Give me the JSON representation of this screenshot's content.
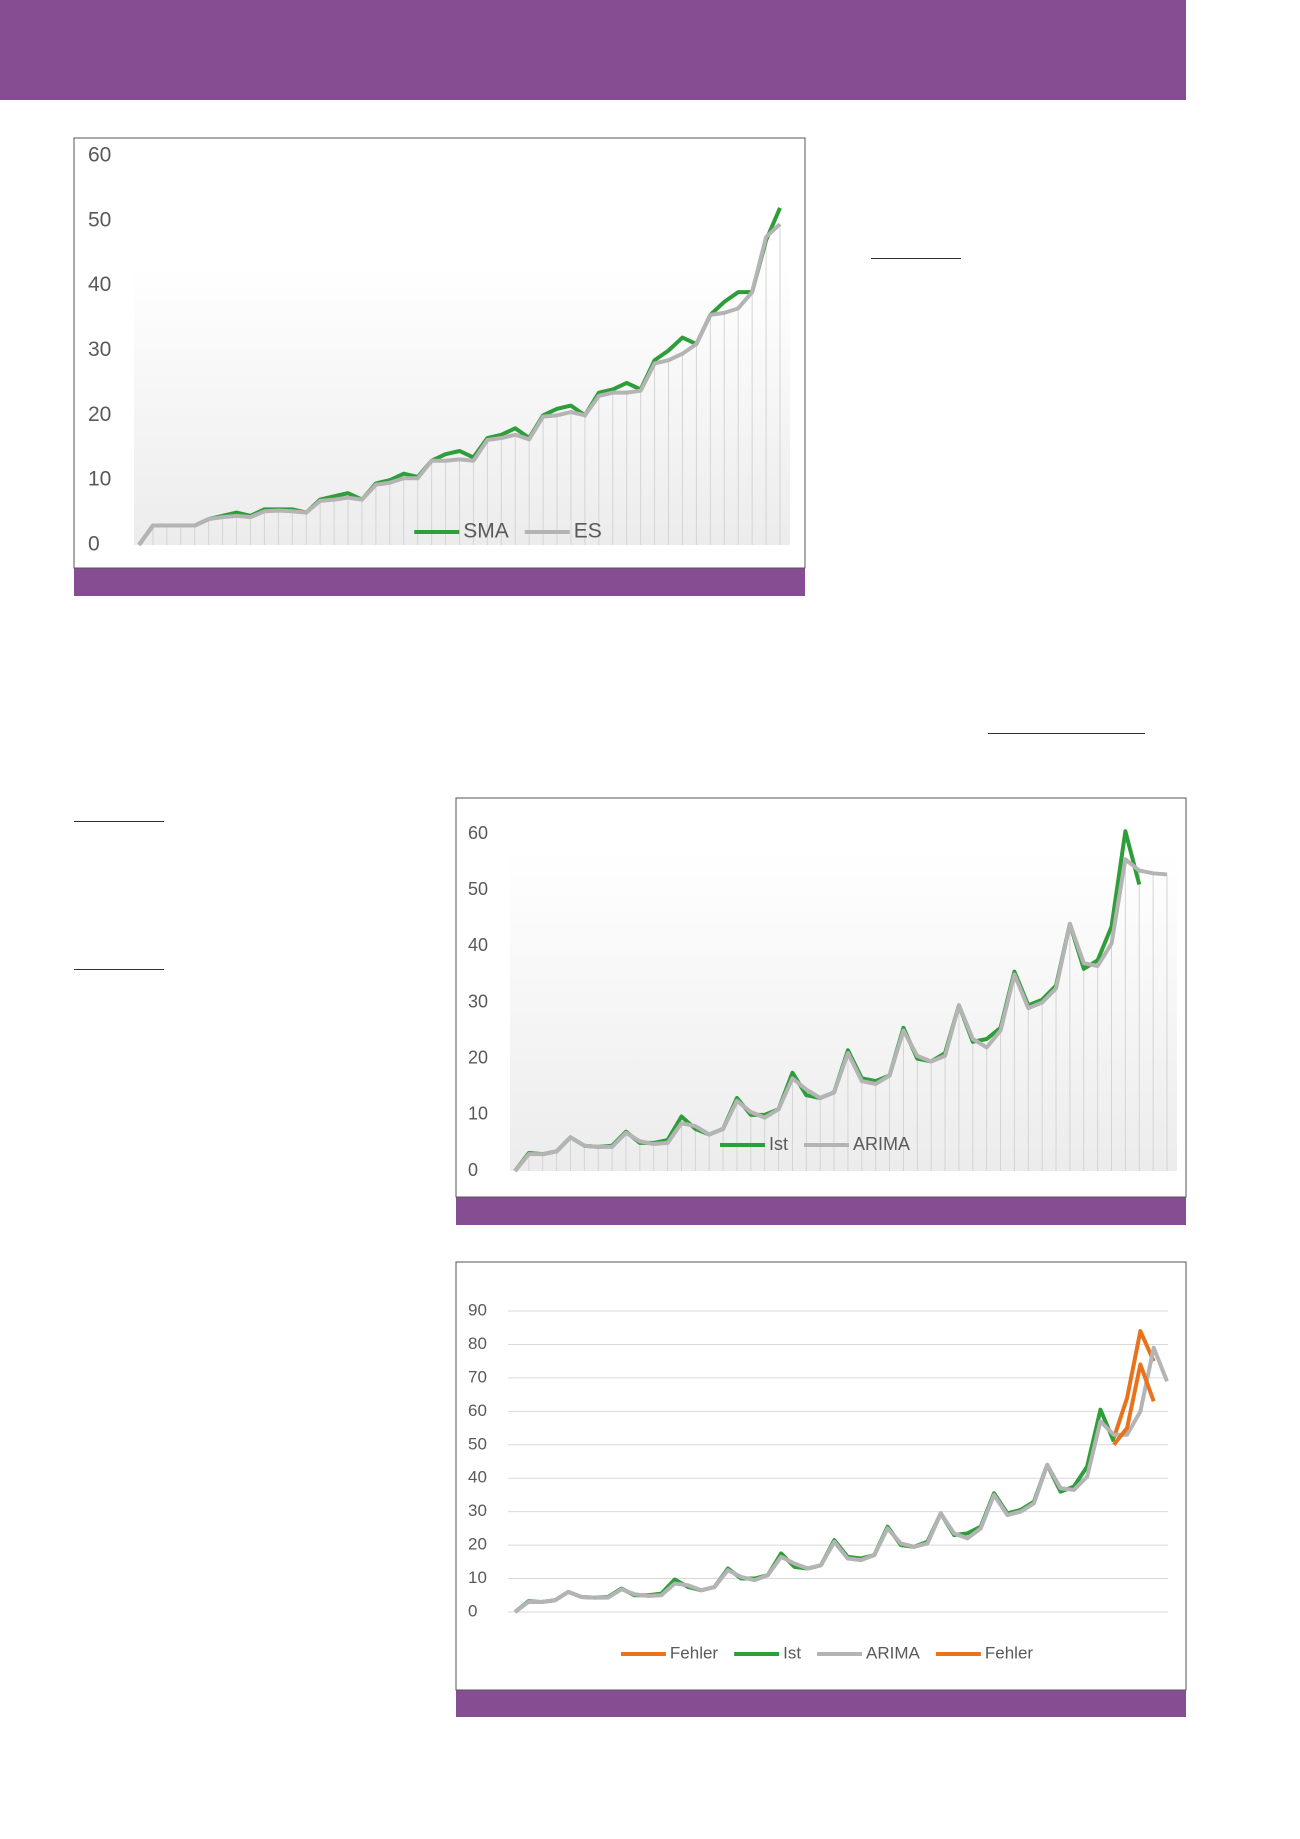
{
  "chart_data": [
    {
      "type": "line",
      "ylim": [
        0,
        60
      ],
      "yticks": [
        0,
        10,
        20,
        30,
        40,
        50,
        60
      ],
      "grid": false,
      "drop_lines": true,
      "legend": "bottom",
      "series": [
        {
          "name": "SMA",
          "color": "#2e9e3a",
          "values": [
            0,
            3,
            3,
            3,
            3,
            4,
            4.5,
            5,
            4.5,
            5.5,
            5.5,
            5.5,
            5,
            7,
            7.5,
            8,
            7,
            9.5,
            10,
            11,
            10.5,
            13,
            14,
            14.5,
            13.5,
            16.5,
            17,
            18,
            16.5,
            20,
            21,
            21.5,
            20,
            23.5,
            24,
            25,
            24,
            28.5,
            30,
            32,
            31,
            35.5,
            37.5,
            39,
            39,
            47,
            52
          ]
        },
        {
          "name": "ES",
          "color": "#b4b4b4",
          "values": [
            0,
            3,
            3,
            3,
            3,
            4,
            4.3,
            4.5,
            4.3,
            5.2,
            5.3,
            5.2,
            5,
            6.8,
            7,
            7.3,
            7,
            9.3,
            9.6,
            10.3,
            10.3,
            13,
            13,
            13.2,
            13,
            16.2,
            16.5,
            17,
            16.3,
            19.8,
            20,
            20.5,
            20,
            23,
            23.5,
            23.5,
            23.8,
            28,
            28.5,
            29.5,
            31,
            35.5,
            35.8,
            36.5,
            39,
            47.5,
            49.5
          ]
        }
      ]
    },
    {
      "type": "line",
      "ylim": [
        0,
        60
      ],
      "yticks": [
        0,
        10,
        20,
        30,
        40,
        50,
        60
      ],
      "grid": false,
      "drop_lines": true,
      "legend": "bottom",
      "series": [
        {
          "name": "Ist",
          "color": "#2e9e3a",
          "values": [
            0,
            3.2,
            3,
            3.5,
            6,
            4.5,
            4.3,
            4.5,
            7,
            5,
            5,
            5.5,
            9.7,
            7.5,
            6.5,
            7.5,
            13,
            10,
            10,
            11,
            17.5,
            13.5,
            13,
            14,
            21.5,
            16.5,
            16,
            17,
            25.5,
            20,
            19.5,
            21,
            29.5,
            23,
            23.5,
            25.5,
            35.5,
            29.5,
            30.5,
            33,
            44,
            36,
            37.5,
            43.5,
            60.5,
            51,
            null,
            null
          ]
        },
        {
          "name": "ARIMA",
          "color": "#b4b4b4",
          "values": [
            0,
            3,
            3,
            3.5,
            6,
            4.5,
            4.3,
            4.3,
            6.8,
            5.3,
            4.8,
            5,
            8.5,
            8,
            6.5,
            7.5,
            12.5,
            10.5,
            9.5,
            11,
            16.5,
            14.5,
            13,
            14,
            21,
            16,
            15.5,
            17,
            25,
            20.5,
            19.5,
            20.5,
            29.5,
            23.5,
            22,
            25,
            35,
            29,
            30,
            32.5,
            44,
            37,
            36.5,
            40.5,
            55.5,
            53.5,
            53,
            52.8
          ]
        }
      ]
    },
    {
      "type": "line",
      "ylim": [
        0,
        90
      ],
      "yticks": [
        0,
        10,
        20,
        30,
        40,
        50,
        60,
        70,
        80,
        90
      ],
      "grid": true,
      "drop_lines": false,
      "legend": "below",
      "series": [
        {
          "name": "Fehler",
          "color": "#e8731c",
          "values": [
            null,
            null,
            null,
            null,
            null,
            null,
            null,
            null,
            null,
            null,
            null,
            null,
            null,
            null,
            null,
            null,
            null,
            null,
            null,
            null,
            null,
            null,
            null,
            null,
            null,
            null,
            null,
            null,
            null,
            null,
            null,
            null,
            null,
            null,
            null,
            null,
            null,
            null,
            null,
            null,
            null,
            null,
            null,
            null,
            null,
            52,
            64,
            84,
            75,
            null
          ]
        },
        {
          "name": "Ist",
          "color": "#2e9e3a",
          "values": [
            0,
            3.2,
            3,
            3.5,
            6,
            4.5,
            4.3,
            4.5,
            7,
            5,
            5,
            5.5,
            9.7,
            7.5,
            6.5,
            7.5,
            13,
            10,
            10,
            11,
            17.5,
            13.5,
            13,
            14,
            21.5,
            16.5,
            16,
            17,
            25.5,
            20,
            19.5,
            21,
            29.5,
            23,
            23.5,
            25.5,
            35.5,
            29.5,
            30.5,
            33,
            44,
            36,
            37.5,
            43.5,
            60.5,
            51,
            null,
            null,
            null,
            null
          ]
        },
        {
          "name": "ARIMA",
          "color": "#b4b4b4",
          "values": [
            0,
            3,
            3,
            3.5,
            6,
            4.5,
            4.3,
            4.3,
            6.8,
            5.3,
            4.8,
            5,
            8.5,
            8,
            6.5,
            7.5,
            12.5,
            10.5,
            9.5,
            11,
            16.5,
            14.5,
            13,
            14,
            21,
            16,
            15.5,
            17,
            25,
            20.5,
            19.5,
            20.5,
            29.5,
            23.5,
            22,
            25,
            35,
            29,
            30,
            32.5,
            44,
            37,
            36.5,
            40.5,
            57,
            53,
            53,
            60,
            79,
            69
          ]
        },
        {
          "name": "Fehler",
          "color": "#e8731c",
          "values": [
            null,
            null,
            null,
            null,
            null,
            null,
            null,
            null,
            null,
            null,
            null,
            null,
            null,
            null,
            null,
            null,
            null,
            null,
            null,
            null,
            null,
            null,
            null,
            null,
            null,
            null,
            null,
            null,
            null,
            null,
            null,
            null,
            null,
            null,
            null,
            null,
            null,
            null,
            null,
            null,
            null,
            null,
            null,
            null,
            null,
            50,
            55,
            74,
            63,
            null
          ]
        }
      ]
    }
  ]
}
